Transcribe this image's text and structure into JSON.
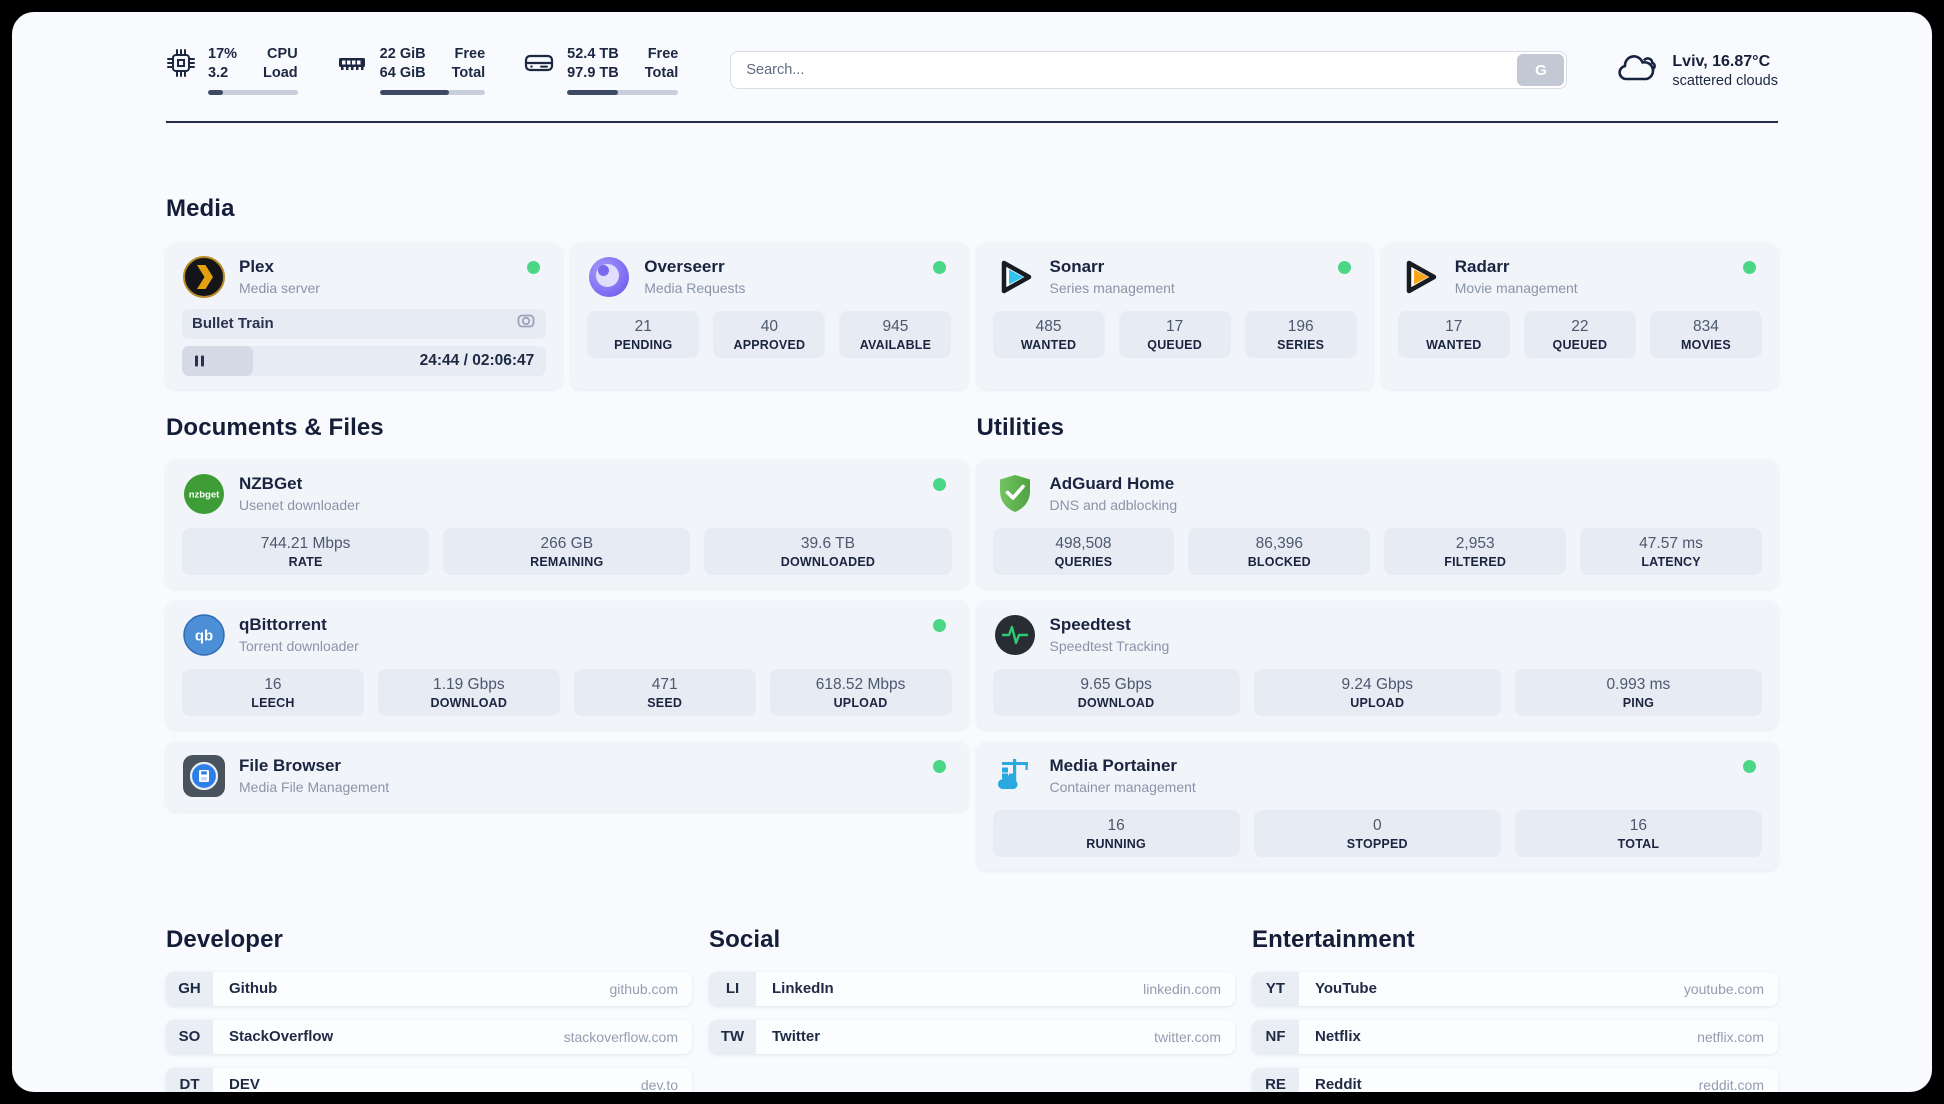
{
  "header": {
    "metrics": [
      {
        "icon": "cpu-icon",
        "value_1": "17%",
        "value_2": "3.2",
        "label_1": "CPU",
        "label_2": "Load",
        "progress_pct": 17
      },
      {
        "icon": "ram-icon",
        "value_1": "22 GiB",
        "value_2": "64 GiB",
        "label_1": "Free",
        "label_2": "Total",
        "progress_pct": 66
      },
      {
        "icon": "disk-icon",
        "value_1": "52.4 TB",
        "value_2": "97.9 TB",
        "label_1": "Free",
        "label_2": "Total",
        "progress_pct": 46
      }
    ],
    "search": {
      "placeholder": "Search...",
      "button_label": "G"
    },
    "weather": {
      "icon": "clouds-icon",
      "location": "Lviv, 16.87°C",
      "condition": "scattered clouds"
    }
  },
  "sections": {
    "media": {
      "title": "Media",
      "apps": [
        {
          "icon": "plex-icon",
          "name": "Plex",
          "description": "Media server",
          "online": true,
          "player": {
            "title": "Bullet Train",
            "time": "24:44 / 02:06:47",
            "progress_pct": 19.5
          }
        },
        {
          "icon": "overseerr-icon",
          "name": "Overseerr",
          "description": "Media Requests",
          "online": true,
          "stats": [
            {
              "value": "21",
              "label": "PENDING"
            },
            {
              "value": "40",
              "label": "APPROVED"
            },
            {
              "value": "945",
              "label": "AVAILABLE"
            }
          ]
        },
        {
          "icon": "sonarr-icon",
          "name": "Sonarr",
          "description": "Series management",
          "online": true,
          "stats": [
            {
              "value": "485",
              "label": "WANTED"
            },
            {
              "value": "17",
              "label": "QUEUED"
            },
            {
              "value": "196",
              "label": "SERIES"
            }
          ]
        },
        {
          "icon": "radarr-icon",
          "name": "Radarr",
          "description": "Movie management",
          "online": true,
          "stats": [
            {
              "value": "17",
              "label": "WANTED"
            },
            {
              "value": "22",
              "label": "QUEUED"
            },
            {
              "value": "834",
              "label": "MOVIES"
            }
          ]
        }
      ]
    },
    "documents": {
      "title": "Documents & Files",
      "apps": [
        {
          "icon": "nzbget-icon",
          "name": "NZBGet",
          "description": "Usenet downloader",
          "online": true,
          "stats": [
            {
              "value": "744.21 Mbps",
              "label": "RATE"
            },
            {
              "value": "266 GB",
              "label": "REMAINING"
            },
            {
              "value": "39.6 TB",
              "label": "DOWNLOADED"
            }
          ]
        },
        {
          "icon": "qbittorrent-icon",
          "name": "qBittorrent",
          "description": "Torrent downloader",
          "online": true,
          "stats": [
            {
              "value": "16",
              "label": "LEECH"
            },
            {
              "value": "1.19 Gbps",
              "label": "DOWNLOAD"
            },
            {
              "value": "471",
              "label": "SEED"
            },
            {
              "value": "618.52 Mbps",
              "label": "UPLOAD"
            }
          ]
        },
        {
          "icon": "filebrowser-icon",
          "name": "File Browser",
          "description": "Media File Management",
          "online": true
        }
      ]
    },
    "utilities": {
      "title": "Utilities",
      "apps": [
        {
          "icon": "adguard-icon",
          "name": "AdGuard Home",
          "description": "DNS and adblocking",
          "online": false,
          "stats": [
            {
              "value": "498,508",
              "label": "QUERIES"
            },
            {
              "value": "86,396",
              "label": "BLOCKED"
            },
            {
              "value": "2,953",
              "label": "FILTERED"
            },
            {
              "value": "47.57 ms",
              "label": "LATENCY"
            }
          ]
        },
        {
          "icon": "speedtest-icon",
          "name": "Speedtest",
          "description": "Speedtest Tracking",
          "online": false,
          "stats": [
            {
              "value": "9.65 Gbps",
              "label": "DOWNLOAD"
            },
            {
              "value": "9.24 Gbps",
              "label": "UPLOAD"
            },
            {
              "value": "0.993 ms",
              "label": "PING"
            }
          ]
        },
        {
          "icon": "portainer-icon",
          "name": "Media Portainer",
          "description": "Container management",
          "online": true,
          "stats": [
            {
              "value": "16",
              "label": "RUNNING"
            },
            {
              "value": "0",
              "label": "STOPPED"
            },
            {
              "value": "16",
              "label": "TOTAL"
            }
          ]
        }
      ]
    },
    "developer": {
      "title": "Developer",
      "links": [
        {
          "abbr": "GH",
          "name": "Github",
          "url": "github.com"
        },
        {
          "abbr": "SO",
          "name": "StackOverflow",
          "url": "stackoverflow.com"
        },
        {
          "abbr": "DT",
          "name": "DEV",
          "url": "dev.to"
        }
      ]
    },
    "social": {
      "title": "Social",
      "links": [
        {
          "abbr": "LI",
          "name": "LinkedIn",
          "url": "linkedin.com"
        },
        {
          "abbr": "TW",
          "name": "Twitter",
          "url": "twitter.com"
        }
      ]
    },
    "entertainment": {
      "title": "Entertainment",
      "links": [
        {
          "abbr": "YT",
          "name": "YouTube",
          "url": "youtube.com"
        },
        {
          "abbr": "NF",
          "name": "Netflix",
          "url": "netflix.com"
        },
        {
          "abbr": "RE",
          "name": "Reddit",
          "url": "reddit.com"
        }
      ]
    }
  },
  "colors": {
    "status_online": "#4cd787",
    "header_line": "#232d45",
    "progress_fill": "#3e4a63"
  }
}
